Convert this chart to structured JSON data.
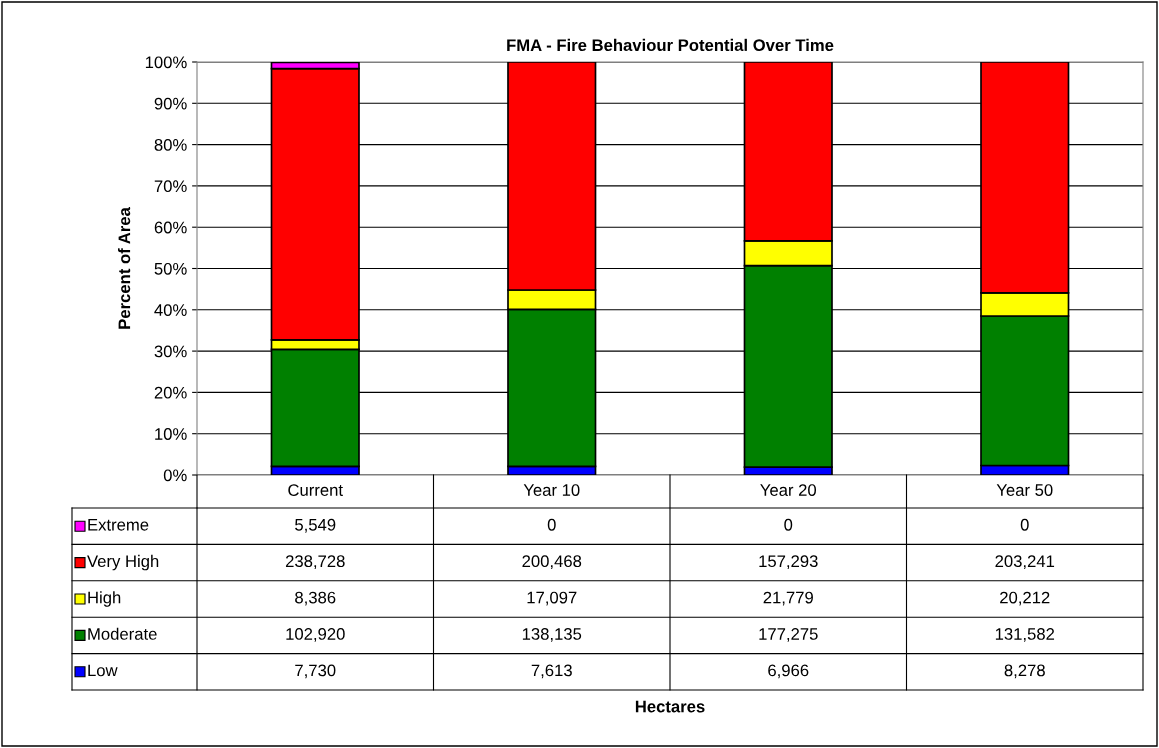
{
  "chart_data": {
    "type": "bar",
    "title": "FMA - Fire Behaviour Potential Over Time",
    "ylabel": "Percent of Area",
    "categories": [
      "Current",
      "Year 10",
      "Year 20",
      "Year 50"
    ],
    "stacked": true,
    "series": [
      {
        "name": "Low",
        "color": "#0000ff",
        "values": [
          2.1,
          2.1,
          1.9,
          2.3
        ]
      },
      {
        "name": "Moderate",
        "color": "#008000",
        "values": [
          28.3,
          38.0,
          48.8,
          36.2
        ]
      },
      {
        "name": "High",
        "color": "#ffff00",
        "values": [
          2.3,
          4.7,
          6.0,
          5.6
        ]
      },
      {
        "name": "Very High",
        "color": "#ff0000",
        "values": [
          65.7,
          55.2,
          43.3,
          55.9
        ]
      },
      {
        "name": "Extreme",
        "color": "#ff00ff",
        "values": [
          1.5,
          0,
          0,
          0
        ]
      }
    ],
    "annotations": [
      "5,549",
      "0",
      "0",
      "0",
      "238,728",
      "200,468",
      "157,293",
      "203,241",
      "8,386",
      "17,097",
      "21,779",
      "20,212",
      "102,920",
      "138,135",
      "177,275",
      "131,582",
      "7,730",
      "7,613",
      "6,966",
      "8,278",
      "Hectares"
    ],
    "ylim": [
      0,
      100
    ],
    "yticks": [
      {
        "value": 0,
        "label": "0%"
      },
      {
        "value": 10,
        "label": "10%"
      },
      {
        "value": 20,
        "label": "20%"
      },
      {
        "value": 30,
        "label": "30%"
      },
      {
        "value": 40,
        "label": "40%"
      },
      {
        "value": 50,
        "label": "50%"
      },
      {
        "value": 60,
        "label": "60%"
      },
      {
        "value": 70,
        "label": "70%"
      },
      {
        "value": 80,
        "label": "80%"
      },
      {
        "value": 90,
        "label": "90%"
      },
      {
        "value": 100,
        "label": "100%"
      }
    ],
    "grid": "y",
    "legend": "left"
  }
}
